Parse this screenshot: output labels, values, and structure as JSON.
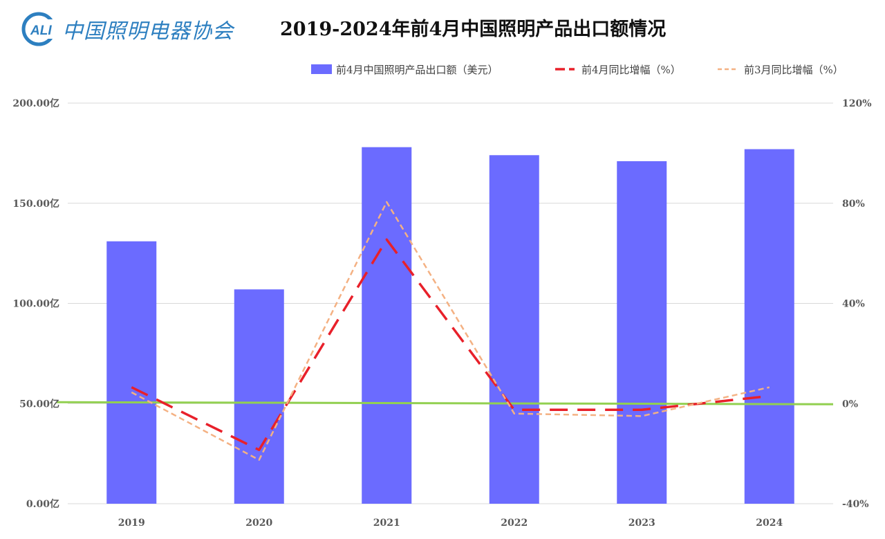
{
  "header": {
    "logo_text": "中国照明电器协会",
    "logo_badge": "ALI",
    "title": "2019-2024年前4月中国照明产品出口额情况"
  },
  "chart_data": {
    "type": "bar",
    "title": "2019-2024年前4月中国照明产品出口额情况",
    "categories": [
      "2019",
      "2020",
      "2021",
      "2022",
      "2023",
      "2024"
    ],
    "y_left": {
      "ticks": [
        "0.00亿",
        "50.00亿",
        "100.00亿",
        "150.00亿",
        "200.00亿"
      ],
      "range": [
        0,
        200
      ]
    },
    "y_right": {
      "ticks": [
        "-40%",
        "0%",
        "40%",
        "80%",
        "120%"
      ],
      "range": [
        -40,
        120
      ]
    },
    "grid": true,
    "legend_position": "top-right",
    "series": [
      {
        "name": "前4月中国照明产品出口额（美元）",
        "kind": "bar",
        "axis": "left",
        "color": "#6b6bff",
        "values": [
          131,
          107,
          178,
          174,
          171,
          177
        ]
      },
      {
        "name": "前4月同比增幅（%）",
        "kind": "line",
        "axis": "right",
        "color": "#e8202a",
        "dash": "long",
        "values": [
          6.5,
          -18.5,
          65.5,
          -2.5,
          -2.5,
          3
        ]
      },
      {
        "name": "前3月同比增幅（%）",
        "kind": "line",
        "axis": "right",
        "color": "#f4b183",
        "dash": "short",
        "values": [
          4.5,
          -22.5,
          80.5,
          -4,
          -5,
          6.5
        ]
      }
    ],
    "baseline": {
      "value": 0,
      "axis": "right",
      "color": "#92d050"
    }
  }
}
